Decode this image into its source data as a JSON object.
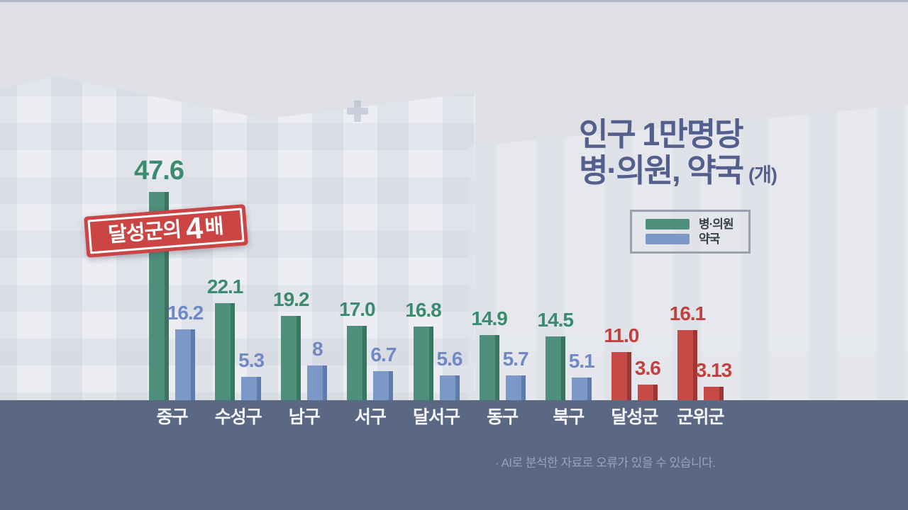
{
  "title": {
    "line1": "인구 1만명당",
    "line2": "병·의원, 약국",
    "unit": "(개)"
  },
  "legend": {
    "items": [
      {
        "label": "병·의원"
      },
      {
        "label": "약국"
      }
    ]
  },
  "badge": {
    "prefix": "달성군의",
    "number": "4",
    "suffix": "배"
  },
  "footer": {
    "note": "· AI로 분석한 자료로 오류가 있을 수 있습니다."
  },
  "chart_data": {
    "type": "bar",
    "title": "인구 1만명당 병·의원, 약국 (개)",
    "unit": "개",
    "categories": [
      "중구",
      "수성구",
      "남구",
      "서구",
      "달서구",
      "동구",
      "북구",
      "달성군",
      "군위군"
    ],
    "series": [
      {
        "name": "병·의원",
        "values": [
          47.6,
          22.1,
          19.2,
          17.0,
          16.8,
          14.9,
          14.5,
          11.0,
          16.1
        ],
        "labels": [
          "47.6",
          "22.1",
          "19.2",
          "17.0",
          "16.8",
          "14.9",
          "14.5",
          "11.0",
          "16.1"
        ]
      },
      {
        "name": "약국",
        "values": [
          16.2,
          5.3,
          8,
          6.7,
          5.6,
          5.7,
          5.1,
          3.6,
          3.13
        ],
        "labels": [
          "16.2",
          "5.3",
          "8",
          "6.7",
          "5.6",
          "5.7",
          "5.1",
          "3.6",
          "3.13"
        ]
      }
    ],
    "highlight_categories": [
      "달성군",
      "군위군"
    ],
    "annotation": "달성군의 4배",
    "ylim": [
      0,
      50
    ],
    "grid": false,
    "legend_position": "top-right",
    "colors": {
      "series1": "#4e907b",
      "series1_dark": "#3a7560",
      "series1_label": "#3b8b6e",
      "series2": "#7c98c7",
      "series2_dark": "#5e7bab",
      "series2_label": "#7189c3",
      "highlight": "#c64a46",
      "highlight_dark": "#9d3734",
      "highlight_label": "#c2413f",
      "badge": "#ca4543",
      "band": "#5b6884",
      "title": "#535f8c"
    }
  }
}
